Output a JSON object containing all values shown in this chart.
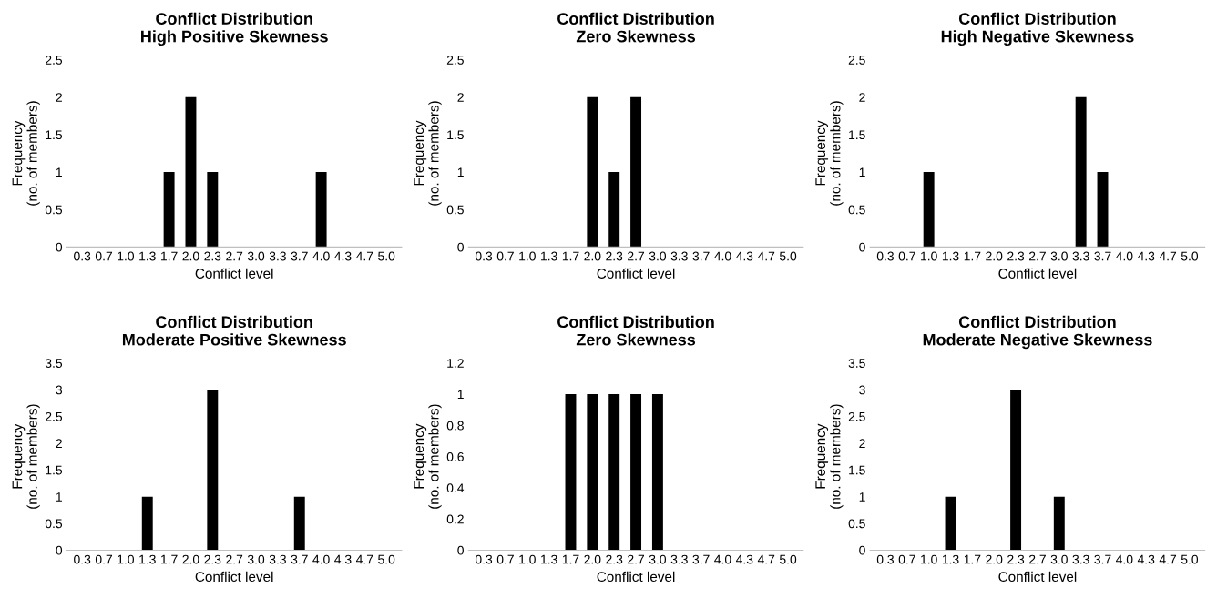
{
  "chart_data": [
    {
      "type": "bar",
      "title": "Conflict Distribution\nHigh Positive Skewness",
      "xlabel": "Conflict level",
      "ylabel": "Frequency\n(no. of members)",
      "categories": [
        "0.3",
        "0.7",
        "1.0",
        "1.3",
        "1.7",
        "2.0",
        "2.3",
        "2.7",
        "3.0",
        "3.3",
        "3.7",
        "4.0",
        "4.3",
        "4.7",
        "5.0"
      ],
      "values": [
        0,
        0,
        0,
        0,
        1,
        2,
        1,
        0,
        0,
        0,
        0,
        1,
        0,
        0,
        0
      ],
      "color": "#000000",
      "ylim": [
        0,
        2.5
      ],
      "yticks": [
        0,
        0.5,
        1,
        1.5,
        2,
        2.5
      ],
      "grid": false,
      "legend": false
    },
    {
      "type": "bar",
      "title": "Conflict Distribution\nZero Skewness",
      "xlabel": "Conflict level",
      "ylabel": "Frequency\n(no. of members)",
      "categories": [
        "0.3",
        "0.7",
        "1.0",
        "1.3",
        "1.7",
        "2.0",
        "2.3",
        "2.7",
        "3.0",
        "3.3",
        "3.7",
        "4.0",
        "4.3",
        "4.7",
        "5.0"
      ],
      "values": [
        0,
        0,
        0,
        0,
        0,
        2,
        1,
        2,
        0,
        0,
        0,
        0,
        0,
        0,
        0
      ],
      "color": "#000000",
      "ylim": [
        0,
        2.5
      ],
      "yticks": [
        0,
        0.5,
        1,
        1.5,
        2,
        2.5
      ],
      "grid": false,
      "legend": false
    },
    {
      "type": "bar",
      "title": "Conflict Distribution\nHigh Negative Skewness",
      "xlabel": "Conflict level",
      "ylabel": "Frequency\n(no. of members)",
      "categories": [
        "0.3",
        "0.7",
        "1.0",
        "1.3",
        "1.7",
        "2.0",
        "2.3",
        "2.7",
        "3.0",
        "3.3",
        "3.7",
        "4.0",
        "4.3",
        "4.7",
        "5.0"
      ],
      "values": [
        0,
        0,
        1,
        0,
        0,
        0,
        0,
        0,
        0,
        2,
        1,
        0,
        0,
        0,
        0
      ],
      "color": "#000000",
      "ylim": [
        0,
        2.5
      ],
      "yticks": [
        0,
        0.5,
        1,
        1.5,
        2,
        2.5
      ],
      "grid": false,
      "legend": false
    },
    {
      "type": "bar",
      "title": "Conflict Distribution\nModerate Positive Skewness",
      "xlabel": "Conflict level",
      "ylabel": "Frequency\n(no. of members)",
      "categories": [
        "0.3",
        "0.7",
        "1.0",
        "1.3",
        "1.7",
        "2.0",
        "2.3",
        "2.7",
        "3.0",
        "3.3",
        "3.7",
        "4.0",
        "4.3",
        "4.7",
        "5.0"
      ],
      "values": [
        0,
        0,
        0,
        1,
        0,
        0,
        3,
        0,
        0,
        0,
        1,
        0,
        0,
        0,
        0
      ],
      "color": "#000000",
      "ylim": [
        0,
        3.5
      ],
      "yticks": [
        0,
        0.5,
        1,
        1.5,
        2,
        2.5,
        3,
        3.5
      ],
      "grid": false,
      "legend": false
    },
    {
      "type": "bar",
      "title": "Conflict Distribution\nZero Skewness",
      "xlabel": "Conflict level",
      "ylabel": "Frequency\n(no. of members)",
      "categories": [
        "0.3",
        "0.7",
        "1.0",
        "1.3",
        "1.7",
        "2.0",
        "2.3",
        "2.7",
        "3.0",
        "3.3",
        "3.7",
        "4.0",
        "4.3",
        "4.7",
        "5.0"
      ],
      "values": [
        0,
        0,
        0,
        0,
        1,
        1,
        1,
        1,
        1,
        0,
        0,
        0,
        0,
        0,
        0
      ],
      "color": "#000000",
      "ylim": [
        0,
        1.2
      ],
      "yticks": [
        0,
        0.2,
        0.4,
        0.6,
        0.8,
        1,
        1.2
      ],
      "grid": false,
      "legend": false
    },
    {
      "type": "bar",
      "title": "Conflict Distribution\nModerate Negative Skewness",
      "xlabel": "Conflict level",
      "ylabel": "Frequency\n(no. of members)",
      "categories": [
        "0.3",
        "0.7",
        "1.0",
        "1.3",
        "1.7",
        "2.0",
        "2.3",
        "2.7",
        "3.0",
        "3.3",
        "3.7",
        "4.0",
        "4.3",
        "4.7",
        "5.0"
      ],
      "values": [
        0,
        0,
        0,
        1,
        0,
        0,
        3,
        0,
        1,
        0,
        0,
        0,
        0,
        0,
        0
      ],
      "color": "#000000",
      "ylim": [
        0,
        3.5
      ],
      "yticks": [
        0,
        0.5,
        1,
        1.5,
        2,
        2.5,
        3,
        3.5
      ],
      "grid": false,
      "legend": false
    }
  ]
}
